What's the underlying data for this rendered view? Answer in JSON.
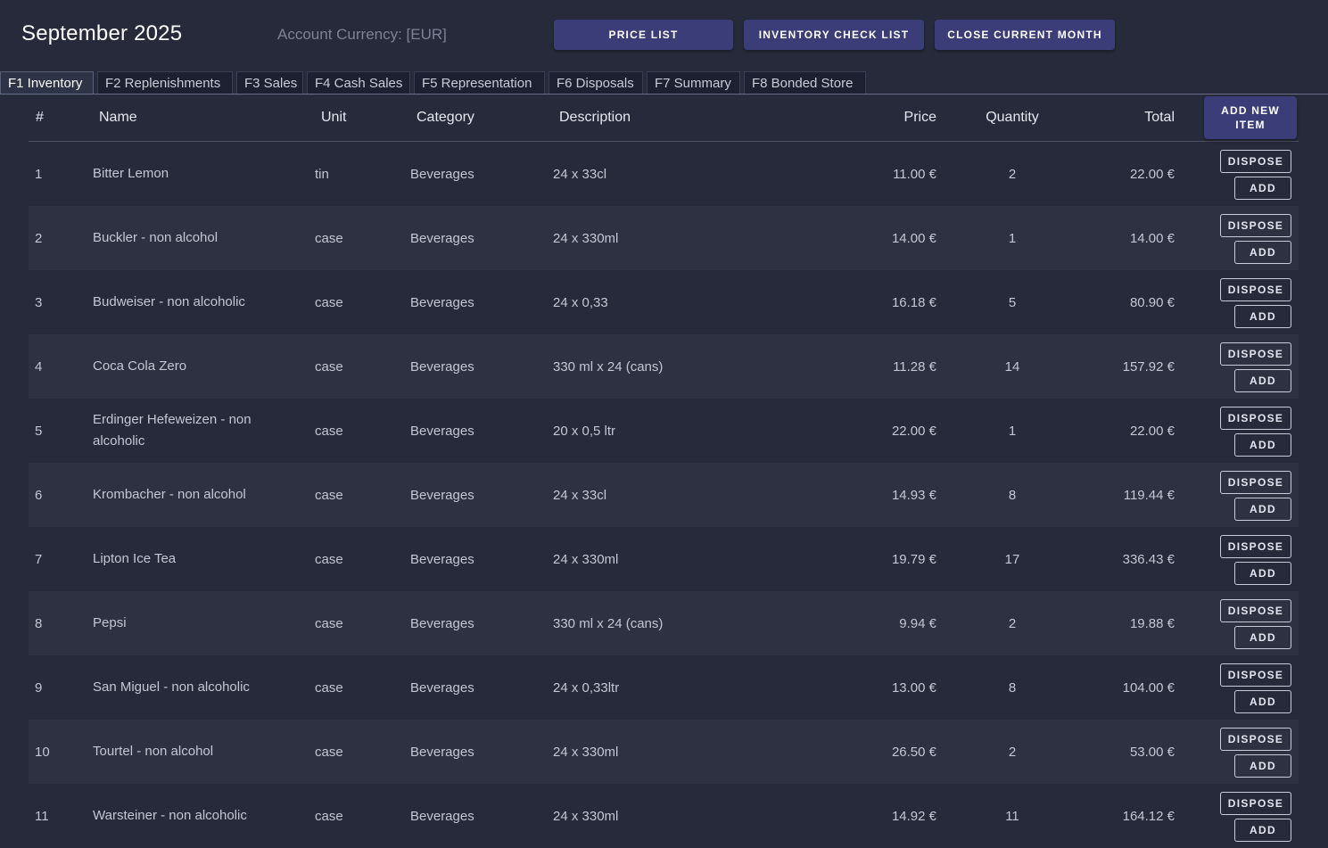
{
  "header": {
    "title": "September 2025",
    "currency_label": "Account Currency: [EUR]",
    "buttons": {
      "price_list": "PRICE LIST",
      "inventory_check": "INVENTORY CHECK LIST",
      "close_month": "CLOSE CURRENT MONTH"
    }
  },
  "tabs": [
    {
      "label": "F1 Inventory",
      "active": true
    },
    {
      "label": "F2 Replenishments"
    },
    {
      "label": "F3 Sales"
    },
    {
      "label": "F4 Cash Sales"
    },
    {
      "label": "F5 Representation"
    },
    {
      "label": "F6 Disposals"
    },
    {
      "label": "F7 Summary"
    },
    {
      "label": "F8 Bonded Store"
    }
  ],
  "table": {
    "columns": {
      "num": "#",
      "name": "Name",
      "unit": "Unit",
      "category": "Category",
      "description": "Description",
      "price": "Price",
      "quantity": "Quantity",
      "total": "Total"
    },
    "add_new_label": "ADD NEW ITEM",
    "dispose_label": "DISPOSE",
    "add_label": "ADD",
    "rows": [
      {
        "num": "1",
        "name": "Bitter Lemon",
        "unit": "tin",
        "category": "Beverages",
        "description": "24 x 33cl",
        "price": "11.00 €",
        "quantity": "2",
        "total": "22.00 €"
      },
      {
        "num": "2",
        "name": "Buckler - non alcohol",
        "unit": "case",
        "category": "Beverages",
        "description": "24 x 330ml",
        "price": "14.00 €",
        "quantity": "1",
        "total": "14.00 €"
      },
      {
        "num": "3",
        "name": "Budweiser - non alcoholic",
        "unit": "case",
        "category": "Beverages",
        "description": "24 x 0,33",
        "price": "16.18 €",
        "quantity": "5",
        "total": "80.90 €"
      },
      {
        "num": "4",
        "name": "Coca Cola Zero",
        "unit": "case",
        "category": "Beverages",
        "description": "330 ml x 24 (cans)",
        "price": "11.28 €",
        "quantity": "14",
        "total": "157.92 €"
      },
      {
        "num": "5",
        "name": "Erdinger Hefeweizen - non alcoholic",
        "unit": "case",
        "category": "Beverages",
        "description": "20 x 0,5 ltr",
        "price": "22.00 €",
        "quantity": "1",
        "total": "22.00 €"
      },
      {
        "num": "6",
        "name": "Krombacher - non alcohol",
        "unit": "case",
        "category": "Beverages",
        "description": "24 x 33cl",
        "price": "14.93 €",
        "quantity": "8",
        "total": "119.44 €"
      },
      {
        "num": "7",
        "name": "Lipton Ice Tea",
        "unit": "case",
        "category": "Beverages",
        "description": "24 x 330ml",
        "price": "19.79 €",
        "quantity": "17",
        "total": "336.43 €"
      },
      {
        "num": "8",
        "name": "Pepsi",
        "unit": "case",
        "category": "Beverages",
        "description": "330 ml x 24 (cans)",
        "price": "9.94 €",
        "quantity": "2",
        "total": "19.88 €"
      },
      {
        "num": "9",
        "name": "San Miguel - non alcoholic",
        "unit": "case",
        "category": "Beverages",
        "description": "24 x 0,33ltr",
        "price": "13.00 €",
        "quantity": "8",
        "total": "104.00 €"
      },
      {
        "num": "10",
        "name": "Tourtel - non alcohol",
        "unit": "case",
        "category": "Beverages",
        "description": "24 x 330ml",
        "price": "26.50 €",
        "quantity": "2",
        "total": "53.00 €"
      },
      {
        "num": "11",
        "name": "Warsteiner - non alcoholic",
        "unit": "case",
        "category": "Beverages",
        "description": "24 x 330ml",
        "price": "14.92 €",
        "quantity": "11",
        "total": "164.12 €"
      }
    ]
  },
  "colors": {
    "background": "#262a3a",
    "row_alt": "#2d3142",
    "button": "#3b3d78"
  }
}
